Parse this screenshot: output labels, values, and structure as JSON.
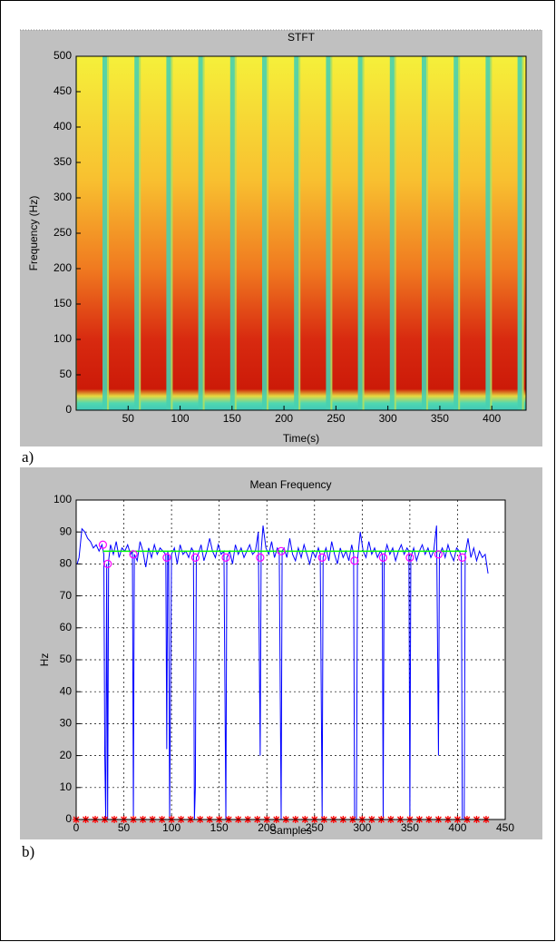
{
  "chart_data": [
    {
      "type": "spectrogram",
      "title": "STFT",
      "x_label": "Time(s)",
      "y_label": "Frequency (Hz)",
      "panel_label": "a)",
      "xlim": [
        0,
        433
      ],
      "xticks": [
        50,
        100,
        150,
        200,
        250,
        300,
        350,
        400
      ],
      "ylim": [
        0,
        500
      ],
      "yticks": [
        0,
        50,
        100,
        150,
        200,
        250,
        300,
        350,
        400,
        450,
        500
      ],
      "grid": false
    },
    {
      "type": "line",
      "title": "Mean Frequency",
      "x_label": "Samples",
      "y_label": "Hz",
      "panel_label": "b)",
      "xlim": [
        0,
        450
      ],
      "xticks": [
        0,
        50,
        100,
        150,
        200,
        250,
        300,
        350,
        400,
        450
      ],
      "ylim": [
        0,
        100
      ],
      "yticks": [
        0,
        10,
        20,
        30,
        40,
        50,
        60,
        70,
        80,
        90,
        100
      ],
      "grid": true,
      "series": [
        {
          "kind": "line",
          "color": "#0000ff",
          "x": [
            1,
            3,
            6,
            9,
            12,
            15,
            18,
            21,
            24,
            27,
            29,
            30,
            31,
            32,
            33,
            34,
            36,
            39,
            42,
            45,
            48,
            51,
            54,
            57,
            59,
            60,
            61,
            64,
            67,
            70,
            73,
            76,
            79,
            82,
            85,
            88,
            91,
            94,
            95,
            96,
            97,
            98,
            100,
            103,
            106,
            109,
            112,
            115,
            118,
            121,
            123,
            124,
            125,
            126,
            128,
            131,
            134,
            137,
            140,
            143,
            146,
            149,
            152,
            155,
            157,
            158,
            161,
            164,
            167,
            170,
            173,
            176,
            179,
            182,
            185,
            188,
            191,
            193,
            194,
            196,
            199,
            202,
            205,
            208,
            211,
            213,
            215,
            216,
            218,
            221,
            224,
            227,
            230,
            233,
            236,
            239,
            242,
            245,
            248,
            251,
            254,
            256,
            258,
            259,
            262,
            265,
            268,
            271,
            274,
            277,
            280,
            283,
            286,
            289,
            291,
            292,
            294,
            295,
            298,
            301,
            304,
            307,
            310,
            313,
            316,
            319,
            321,
            322,
            323,
            326,
            329,
            332,
            335,
            338,
            341,
            344,
            347,
            349,
            350,
            351,
            354,
            357,
            360,
            363,
            366,
            369,
            372,
            375,
            378,
            380,
            381,
            384,
            387,
            390,
            393,
            396,
            399,
            402,
            404,
            405,
            407,
            408,
            411,
            414,
            417,
            420,
            423,
            426,
            429,
            432
          ],
          "values": [
            80,
            82,
            91,
            90,
            88,
            87,
            85,
            86,
            84,
            86,
            83,
            20,
            0,
            80,
            0,
            81,
            86,
            83,
            87,
            82,
            85,
            84,
            86,
            83,
            84,
            0,
            83,
            81,
            87,
            84,
            79,
            85,
            82,
            86,
            83,
            85,
            84,
            83,
            22,
            84,
            82,
            0,
            83,
            85,
            80,
            86,
            83,
            84,
            82,
            85,
            84,
            0,
            10,
            82,
            83,
            86,
            81,
            84,
            88,
            84,
            82,
            86,
            83,
            84,
            0,
            82,
            84,
            80,
            86,
            83,
            85,
            82,
            84,
            86,
            83,
            84,
            90,
            20,
            84,
            92,
            85,
            83,
            87,
            82,
            85,
            84,
            0,
            84,
            85,
            82,
            88,
            83,
            81,
            85,
            82,
            86,
            83,
            80,
            84,
            82,
            85,
            83,
            0,
            82,
            85,
            81,
            87,
            83,
            80,
            85,
            82,
            84,
            81,
            86,
            83,
            0,
            0,
            81,
            90,
            84,
            82,
            87,
            83,
            85,
            82,
            84,
            83,
            0,
            82,
            86,
            83,
            85,
            81,
            84,
            86,
            83,
            85,
            84,
            0,
            82,
            85,
            81,
            84,
            86,
            83,
            85,
            82,
            84,
            92,
            20,
            83,
            85,
            82,
            86,
            83,
            81,
            85,
            84,
            82,
            0,
            0,
            83,
            88,
            82,
            85,
            81,
            84,
            82,
            83,
            77
          ]
        },
        {
          "kind": "line",
          "color": "#00ff00",
          "x": [
            28,
            410
          ],
          "values": [
            84,
            84
          ]
        },
        {
          "kind": "circle",
          "color": "#ff00ff",
          "x": [
            28,
            33,
            60,
            95,
            125,
            157,
            193,
            215,
            258,
            292,
            322,
            350,
            380,
            405
          ],
          "values": [
            86,
            80,
            83,
            82,
            82,
            82,
            82,
            84,
            82,
            81,
            82,
            82,
            83,
            82
          ]
        },
        {
          "kind": "star",
          "color": "#ff0000",
          "x": [
            0,
            10,
            20,
            30,
            40,
            50,
            60,
            70,
            80,
            90,
            100,
            110,
            120,
            130,
            140,
            150,
            160,
            170,
            180,
            190,
            200,
            210,
            220,
            230,
            240,
            250,
            260,
            270,
            280,
            290,
            300,
            310,
            320,
            330,
            340,
            350,
            360,
            370,
            380,
            390,
            400,
            410,
            420,
            430
          ],
          "values": [
            0,
            0,
            0,
            0,
            0,
            0,
            0,
            0,
            0,
            0,
            0,
            0,
            0,
            0,
            0,
            0,
            0,
            0,
            0,
            0,
            0,
            0,
            0,
            0,
            0,
            0,
            0,
            0,
            0,
            0,
            0,
            0,
            0,
            0,
            0,
            0,
            0,
            0,
            0,
            0,
            0,
            0,
            0,
            0
          ]
        }
      ]
    }
  ]
}
